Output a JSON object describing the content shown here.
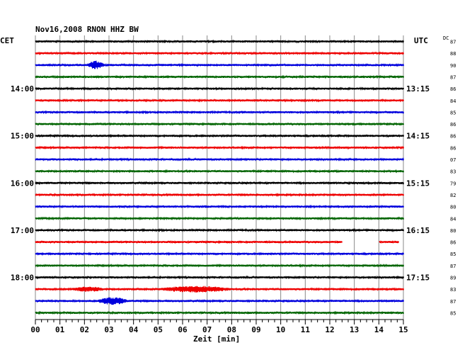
{
  "chart_data": {
    "type": "line",
    "title": "Nov16,2008   RNON HHZ BW",
    "left_label": "CET",
    "right_label": "UTC",
    "dc_label": "DC",
    "xlabel": "Zeit [min]",
    "xlim": [
      0,
      15
    ],
    "x_ticks": [
      "00",
      "01",
      "02",
      "03",
      "04",
      "05",
      "06",
      "07",
      "08",
      "09",
      "10",
      "11",
      "12",
      "13",
      "14",
      "15"
    ],
    "trace_count": 24,
    "trace_colors": [
      "#000000",
      "#ee0000",
      "#0000dd",
      "#006400"
    ],
    "left_time_labels": [
      {
        "trace": 4,
        "text": "14:00"
      },
      {
        "trace": 8,
        "text": "15:00"
      },
      {
        "trace": 12,
        "text": "16:00"
      },
      {
        "trace": 16,
        "text": "17:00"
      },
      {
        "trace": 20,
        "text": "18:00"
      }
    ],
    "right_time_labels": [
      {
        "trace": 4,
        "text": "13:15"
      },
      {
        "trace": 8,
        "text": "14:15"
      },
      {
        "trace": 12,
        "text": "15:15"
      },
      {
        "trace": 16,
        "text": "16:15"
      },
      {
        "trace": 20,
        "text": "17:15"
      }
    ],
    "dc_offsets": [
      "87",
      "88",
      "90",
      "87",
      "86",
      "84",
      "85",
      "86",
      "86",
      "86",
      "07",
      "83",
      "79",
      "82",
      "80",
      "84",
      "80",
      "86",
      "85",
      "87",
      "89",
      "83",
      "87",
      "85"
    ],
    "events": [
      {
        "trace": 2,
        "start_min": 2.1,
        "end_min": 2.8,
        "strength": 3
      },
      {
        "trace": 21,
        "start_min": 1.5,
        "end_min": 2.8,
        "strength": 1.5
      },
      {
        "trace": 21,
        "start_min": 5.0,
        "end_min": 8.0,
        "strength": 2
      },
      {
        "trace": 22,
        "start_min": 2.5,
        "end_min": 3.8,
        "strength": 2.5
      }
    ],
    "gaps": [
      {
        "trace": 17,
        "start_min": 12.5,
        "end_min": 14.0
      },
      {
        "trace": 17,
        "start_min": 14.8,
        "end_min": 15.0
      }
    ],
    "grid": true
  }
}
